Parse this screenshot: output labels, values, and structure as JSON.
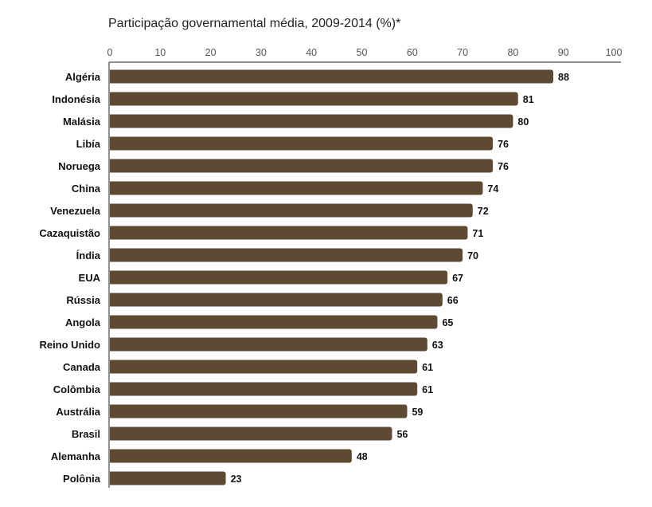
{
  "chart_data": {
    "type": "bar",
    "orientation": "horizontal",
    "title": "Participação governamental média, 2009-2014 (%)*",
    "xlim": [
      0,
      100
    ],
    "xticks": [
      0,
      10,
      20,
      30,
      40,
      50,
      60,
      70,
      80,
      90,
      100
    ],
    "grid": false,
    "bar_color": "#5e4a33",
    "categories": [
      "Algéria",
      "Indonésia",
      "Malásia",
      "Libía",
      "Noruega",
      "China",
      "Venezuela",
      "Cazaquistão",
      "Índia",
      "EUA",
      "Rússia",
      "Angola",
      "Reino Unido",
      "Canada",
      "Colômbia",
      "Austrália",
      "Brasil",
      "Alemanha",
      "Polônia"
    ],
    "values": [
      88,
      81,
      80,
      76,
      76,
      74,
      72,
      71,
      70,
      67,
      66,
      65,
      63,
      61,
      61,
      59,
      56,
      48,
      23
    ]
  }
}
